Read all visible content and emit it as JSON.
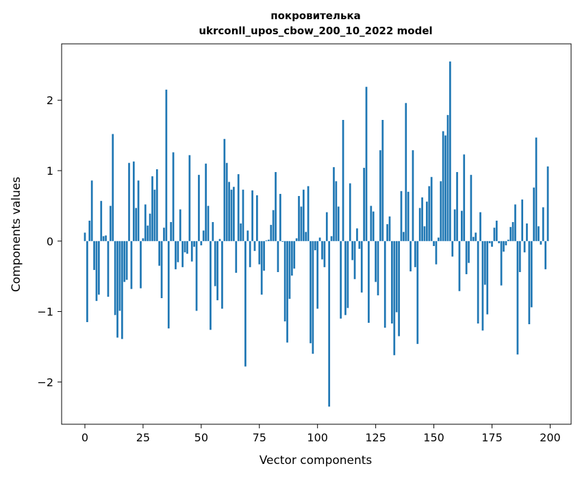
{
  "chart_data": {
    "type": "bar",
    "title_line1": "покровителька",
    "title_line2": "ukrconll_upos_cbow_200_10_2022 model",
    "xlabel": "Vector components",
    "ylabel": "Components values",
    "xlim": [
      -10,
      209
    ],
    "ylim": [
      -2.6,
      2.8
    ],
    "x_ticks": [
      0,
      25,
      50,
      75,
      100,
      125,
      150,
      175,
      200
    ],
    "x_tick_labels": [
      "0",
      "25",
      "50",
      "75",
      "100",
      "125",
      "150",
      "175",
      "200"
    ],
    "y_ticks": [
      -2,
      -1,
      0,
      1,
      2
    ],
    "y_tick_labels": [
      "−2",
      "−1",
      "0",
      "1",
      "2"
    ],
    "bar_color": "#1f77b4",
    "values": [
      0.12,
      -1.15,
      0.29,
      0.86,
      -0.41,
      -0.85,
      -0.76,
      0.57,
      0.07,
      0.08,
      -0.79,
      0.5,
      1.52,
      -1.05,
      -1.37,
      -0.99,
      -1.39,
      -0.58,
      -0.55,
      1.11,
      -0.68,
      1.13,
      0.47,
      0.86,
      -0.67,
      0.04,
      0.52,
      0.22,
      0.39,
      0.92,
      0.73,
      1.02,
      -0.35,
      -0.81,
      0.19,
      2.15,
      -1.24,
      0.27,
      1.26,
      -0.4,
      -0.3,
      0.45,
      -0.37,
      -0.16,
      -0.18,
      1.22,
      -0.29,
      -0.08,
      -0.99,
      0.94,
      -0.06,
      0.15,
      1.1,
      0.5,
      -1.26,
      0.27,
      -0.64,
      -0.84,
      0.03,
      -0.96,
      1.45,
      1.11,
      0.84,
      0.73,
      0.77,
      -0.45,
      0.95,
      0.25,
      0.73,
      -1.78,
      0.15,
      -0.37,
      0.72,
      -0.14,
      0.65,
      -0.33,
      -0.76,
      -0.42,
      0.01,
      0.02,
      0.23,
      0.44,
      0.98,
      -0.44,
      0.67,
      -0.01,
      -1.14,
      -1.44,
      -0.82,
      -0.49,
      -0.39,
      0.04,
      0.64,
      0.49,
      0.73,
      0.13,
      0.78,
      -1.45,
      -1.6,
      -0.13,
      -0.96,
      0.05,
      -0.26,
      -0.37,
      0.41,
      -2.35,
      0.07,
      1.05,
      0.85,
      0.49,
      -1.1,
      1.72,
      -1.05,
      -0.95,
      0.82,
      -0.27,
      -0.54,
      0.18,
      -0.11,
      -0.73,
      1.04,
      2.19,
      -1.16,
      0.5,
      0.42,
      -0.58,
      -0.77,
      1.29,
      1.72,
      -1.23,
      0.24,
      0.35,
      -1.17,
      -1.62,
      -1.01,
      -1.35,
      0.71,
      0.13,
      1.96,
      0.7,
      -0.43,
      1.29,
      -0.37,
      -1.46,
      0.47,
      0.62,
      0.21,
      0.56,
      0.78,
      0.91,
      -0.07,
      -0.33,
      0.05,
      0.85,
      1.56,
      1.5,
      1.79,
      2.55,
      -0.22,
      0.45,
      0.98,
      -0.71,
      0.43,
      1.23,
      -0.47,
      -0.31,
      0.94,
      0.06,
      0.12,
      -1.17,
      0.41,
      -1.27,
      -0.62,
      -1.04,
      -0.03,
      -0.08,
      0.19,
      0.29,
      -0.03,
      -0.63,
      -0.15,
      -0.06,
      0.02,
      0.2,
      0.27,
      0.52,
      -1.61,
      -0.44,
      0.59,
      -0.16,
      0.25,
      -1.18,
      -0.94,
      0.76,
      1.47,
      0.21,
      -0.05,
      0.48,
      -0.4,
      1.06
    ]
  }
}
